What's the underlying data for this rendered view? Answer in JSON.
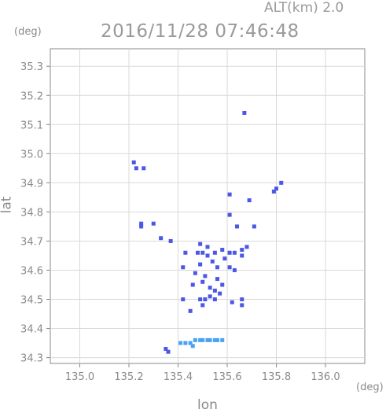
{
  "header": {
    "altitude_label": "ALT(km) 2.0",
    "timestamp": "2016/11/28 07:46:48"
  },
  "chart_data": {
    "type": "scatter",
    "title": "2016/11/28 07:46:48",
    "subtitle": "ALT(km) 2.0",
    "xlabel": "lon",
    "ylabel": "lat",
    "x_unit": "(deg)",
    "y_unit": "(deg)",
    "xlim": [
      134.88,
      136.16
    ],
    "ylim": [
      34.28,
      35.36
    ],
    "x_ticks": [
      "135.0",
      "135.2",
      "135.4",
      "135.6",
      "135.8",
      "136.0"
    ],
    "y_ticks": [
      "34.3",
      "34.4",
      "34.5",
      "34.6",
      "34.7",
      "34.8",
      "34.9",
      "35.0",
      "35.1",
      "35.2",
      "35.3"
    ],
    "grid": true,
    "colors": {
      "echo_dark": "#4b57e6",
      "echo_light": "#4aa3f2",
      "grid": "#d9d9d9",
      "axis": "#888888"
    },
    "series": [
      {
        "points": [
          [
            135.67,
            35.14
          ],
          [
            135.22,
            34.97
          ],
          [
            135.23,
            34.95
          ],
          [
            135.26,
            34.95
          ],
          [
            135.82,
            34.9
          ],
          [
            135.8,
            34.88
          ],
          [
            135.79,
            34.87
          ],
          [
            135.69,
            34.84
          ],
          [
            135.61,
            34.86
          ],
          [
            135.61,
            34.79
          ],
          [
            135.25,
            34.76
          ],
          [
            135.25,
            34.75
          ],
          [
            135.3,
            34.76
          ],
          [
            135.64,
            34.75
          ],
          [
            135.71,
            34.75
          ],
          [
            135.33,
            34.71
          ],
          [
            135.37,
            34.7
          ],
          [
            135.49,
            34.69
          ],
          [
            135.52,
            34.68
          ],
          [
            135.68,
            34.68
          ],
          [
            135.66,
            34.67
          ],
          [
            135.58,
            34.67
          ],
          [
            135.43,
            34.66
          ],
          [
            135.48,
            34.66
          ],
          [
            135.5,
            34.66
          ],
          [
            135.52,
            34.65
          ],
          [
            135.55,
            34.66
          ],
          [
            135.61,
            34.66
          ],
          [
            135.63,
            34.66
          ],
          [
            135.66,
            34.65
          ],
          [
            135.59,
            34.64
          ],
          [
            135.54,
            34.63
          ],
          [
            135.49,
            34.62
          ],
          [
            135.42,
            34.61
          ],
          [
            135.56,
            34.61
          ],
          [
            135.61,
            34.61
          ],
          [
            135.63,
            34.6
          ],
          [
            135.47,
            34.59
          ],
          [
            135.51,
            34.58
          ],
          [
            135.56,
            34.57
          ],
          [
            135.5,
            34.56
          ],
          [
            135.46,
            34.55
          ],
          [
            135.58,
            34.55
          ],
          [
            135.53,
            34.54
          ],
          [
            135.55,
            34.53
          ],
          [
            135.57,
            34.52
          ],
          [
            135.53,
            34.51
          ],
          [
            135.55,
            34.5
          ],
          [
            135.42,
            34.5
          ],
          [
            135.49,
            34.5
          ],
          [
            135.51,
            34.5
          ],
          [
            135.66,
            34.5
          ],
          [
            135.62,
            34.49
          ],
          [
            135.5,
            34.48
          ],
          [
            135.66,
            34.48
          ],
          [
            135.45,
            34.46
          ],
          [
            135.35,
            34.33
          ],
          [
            135.36,
            34.32
          ]
        ]
      },
      {
        "points": [
          [
            135.43,
            34.35
          ],
          [
            135.45,
            34.35
          ],
          [
            135.47,
            34.36
          ],
          [
            135.49,
            34.36
          ],
          [
            135.5,
            34.36
          ],
          [
            135.52,
            34.36
          ],
          [
            135.53,
            34.36
          ],
          [
            135.55,
            34.36
          ],
          [
            135.56,
            34.36
          ],
          [
            135.58,
            34.36
          ],
          [
            135.41,
            34.35
          ],
          [
            135.46,
            34.34
          ]
        ]
      }
    ]
  }
}
